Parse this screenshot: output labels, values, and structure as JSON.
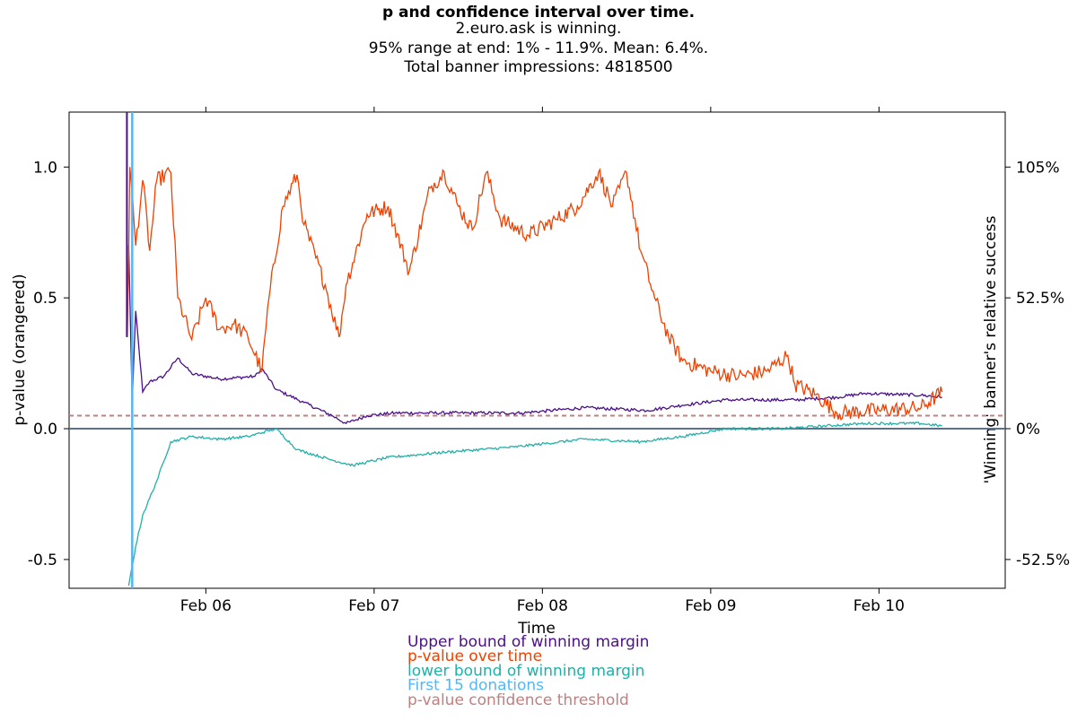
{
  "chart_data": {
    "type": "line",
    "title": "p and confidence interval over time.",
    "subtitle_lines": [
      "2.euro.ask is winning.",
      "95% range at end: 1% - 11.9%. Mean: 6.4%.",
      "Total banner impressions: 4818500"
    ],
    "xlabel": "Time",
    "ylabel": "p-value (orangered)",
    "y2label": "'Winning' banner's relative success",
    "x_ticks": [
      "Feb 06",
      "Feb 07",
      "Feb 08",
      "Feb 09",
      "Feb 10"
    ],
    "y_ticks": [
      "1.0",
      "0.5",
      "0.0",
      "-0.5"
    ],
    "y2_ticks": [
      "105%",
      "52.5%",
      "0%",
      "-52.5%"
    ],
    "x_range": [
      "2011-02-05 04:30",
      "2011-02-10 18:00"
    ],
    "ylim": [
      -0.61,
      1.21
    ],
    "grid": false,
    "legend_position": "bottom-center",
    "threshold": 0.05,
    "series": [
      {
        "name": "Upper bound of winning margin",
        "color": "#4b0f8c",
        "points": [
          [
            "02-05 13:00",
            0.7
          ],
          [
            "02-05 13:30",
            0.1
          ],
          [
            "02-05 14:00",
            0.45
          ],
          [
            "02-05 15:00",
            0.14
          ],
          [
            "02-05 16:00",
            0.18
          ],
          [
            "02-05 18:00",
            0.2
          ],
          [
            "02-05 20:00",
            0.27
          ],
          [
            "02-05 22:00",
            0.21
          ],
          [
            "02-06 02:00",
            0.19
          ],
          [
            "02-06 07:00",
            0.2
          ],
          [
            "02-06 08:00",
            0.23
          ],
          [
            "02-06 10:00",
            0.15
          ],
          [
            "02-06 14:00",
            0.1
          ],
          [
            "02-06 18:00",
            0.05
          ],
          [
            "02-06 20:00",
            0.02
          ],
          [
            "02-06 23:00",
            0.05
          ],
          [
            "02-07 03:00",
            0.06
          ],
          [
            "02-07 12:00",
            0.06
          ],
          [
            "02-07 21:00",
            0.06
          ],
          [
            "02-08 06:00",
            0.08
          ],
          [
            "02-08 15:00",
            0.07
          ],
          [
            "02-08 20:00",
            0.09
          ],
          [
            "02-09 02:00",
            0.11
          ],
          [
            "02-09 12:00",
            0.11
          ],
          [
            "02-09 18:00",
            0.12
          ],
          [
            "02-09 22:00",
            0.135
          ],
          [
            "02-10 06:00",
            0.128
          ],
          [
            "02-10 09:00",
            0.12
          ]
        ]
      },
      {
        "name": "p-value over time",
        "color": "#f04000",
        "points": [
          [
            "02-05 12:48",
            0.35
          ],
          [
            "02-05 13:10",
            1.0
          ],
          [
            "02-05 14:00",
            0.7
          ],
          [
            "02-05 15:00",
            0.95
          ],
          [
            "02-05 16:00",
            0.68
          ],
          [
            "02-05 17:00",
            0.95
          ],
          [
            "02-05 19:00",
            0.98
          ],
          [
            "02-05 20:00",
            0.5
          ],
          [
            "02-05 22:00",
            0.34
          ],
          [
            "02-06 00:00",
            0.5
          ],
          [
            "02-06 02:00",
            0.38
          ],
          [
            "02-06 04:00",
            0.4
          ],
          [
            "02-06 06:00",
            0.35
          ],
          [
            "02-06 08:00",
            0.22
          ],
          [
            "02-06 09:00",
            0.5
          ],
          [
            "02-06 11:00",
            0.85
          ],
          [
            "02-06 13:00",
            0.97
          ],
          [
            "02-06 14:00",
            0.78
          ],
          [
            "02-06 17:00",
            0.55
          ],
          [
            "02-06 19:00",
            0.35
          ],
          [
            "02-06 20:00",
            0.55
          ],
          [
            "02-06 23:00",
            0.82
          ],
          [
            "02-07 02:00",
            0.85
          ],
          [
            "02-07 05:00",
            0.6
          ],
          [
            "02-07 08:00",
            0.92
          ],
          [
            "02-07 10:00",
            0.98
          ],
          [
            "02-07 12:00",
            0.85
          ],
          [
            "02-07 14:00",
            0.76
          ],
          [
            "02-07 16:00",
            0.98
          ],
          [
            "02-07 18:00",
            0.8
          ],
          [
            "02-07 22:00",
            0.74
          ],
          [
            "02-08 02:00",
            0.8
          ],
          [
            "02-08 05:00",
            0.85
          ],
          [
            "02-08 08:00",
            0.98
          ],
          [
            "02-08 10:00",
            0.85
          ],
          [
            "02-08 12:00",
            0.98
          ],
          [
            "02-08 14:00",
            0.68
          ],
          [
            "02-08 16:00",
            0.5
          ],
          [
            "02-08 18:00",
            0.35
          ],
          [
            "02-08 20:00",
            0.26
          ],
          [
            "02-09 00:00",
            0.22
          ],
          [
            "02-09 04:00",
            0.2
          ],
          [
            "02-09 08:00",
            0.22
          ],
          [
            "02-09 11:00",
            0.28
          ],
          [
            "02-09 12:00",
            0.17
          ],
          [
            "02-09 15:00",
            0.13
          ],
          [
            "02-09 18:00",
            0.06
          ],
          [
            "02-10 00:00",
            0.07
          ],
          [
            "02-10 06:00",
            0.08
          ],
          [
            "02-10 09:00",
            0.14
          ]
        ]
      },
      {
        "name": "lower bound of winning margin",
        "color": "#20b0a8",
        "points": [
          [
            "02-05 13:00",
            -0.6
          ],
          [
            "02-05 14:00",
            -0.45
          ],
          [
            "02-05 15:00",
            -0.33
          ],
          [
            "02-05 17:00",
            -0.2
          ],
          [
            "02-05 19:00",
            -0.05
          ],
          [
            "02-05 22:00",
            -0.03
          ],
          [
            "02-06 02:00",
            -0.04
          ],
          [
            "02-06 06:00",
            -0.03
          ],
          [
            "02-06 10:00",
            0.0
          ],
          [
            "02-06 13:00",
            -0.08
          ],
          [
            "02-06 18:00",
            -0.12
          ],
          [
            "02-06 21:00",
            -0.14
          ],
          [
            "02-07 02:00",
            -0.11
          ],
          [
            "02-07 10:00",
            -0.09
          ],
          [
            "02-07 20:00",
            -0.07
          ],
          [
            "02-08 06:00",
            -0.04
          ],
          [
            "02-08 14:00",
            -0.05
          ],
          [
            "02-08 20:00",
            -0.03
          ],
          [
            "02-09 02:00",
            0.0
          ],
          [
            "02-09 10:00",
            0.0
          ],
          [
            "02-09 16:00",
            0.01
          ],
          [
            "02-09 22:00",
            0.02
          ],
          [
            "02-10 06:00",
            0.02
          ],
          [
            "02-10 09:00",
            0.01
          ]
        ]
      }
    ],
    "markers": [
      {
        "name": "First 15 donations",
        "color": "#55b5f5",
        "x": "02-05 13:30"
      }
    ],
    "legend": [
      {
        "label": "Upper bound of winning margin",
        "color": "#4b0f8c"
      },
      {
        "label": "p-value over time",
        "color": "#f04000"
      },
      {
        "label": "lower bound of winning margin",
        "color": "#20b0a8"
      },
      {
        "label": "First 15 donations",
        "color": "#55b5f5"
      },
      {
        "label": "p-value confidence threshold",
        "color": "#c08080"
      }
    ],
    "zero_line_color": "#5a7090"
  }
}
